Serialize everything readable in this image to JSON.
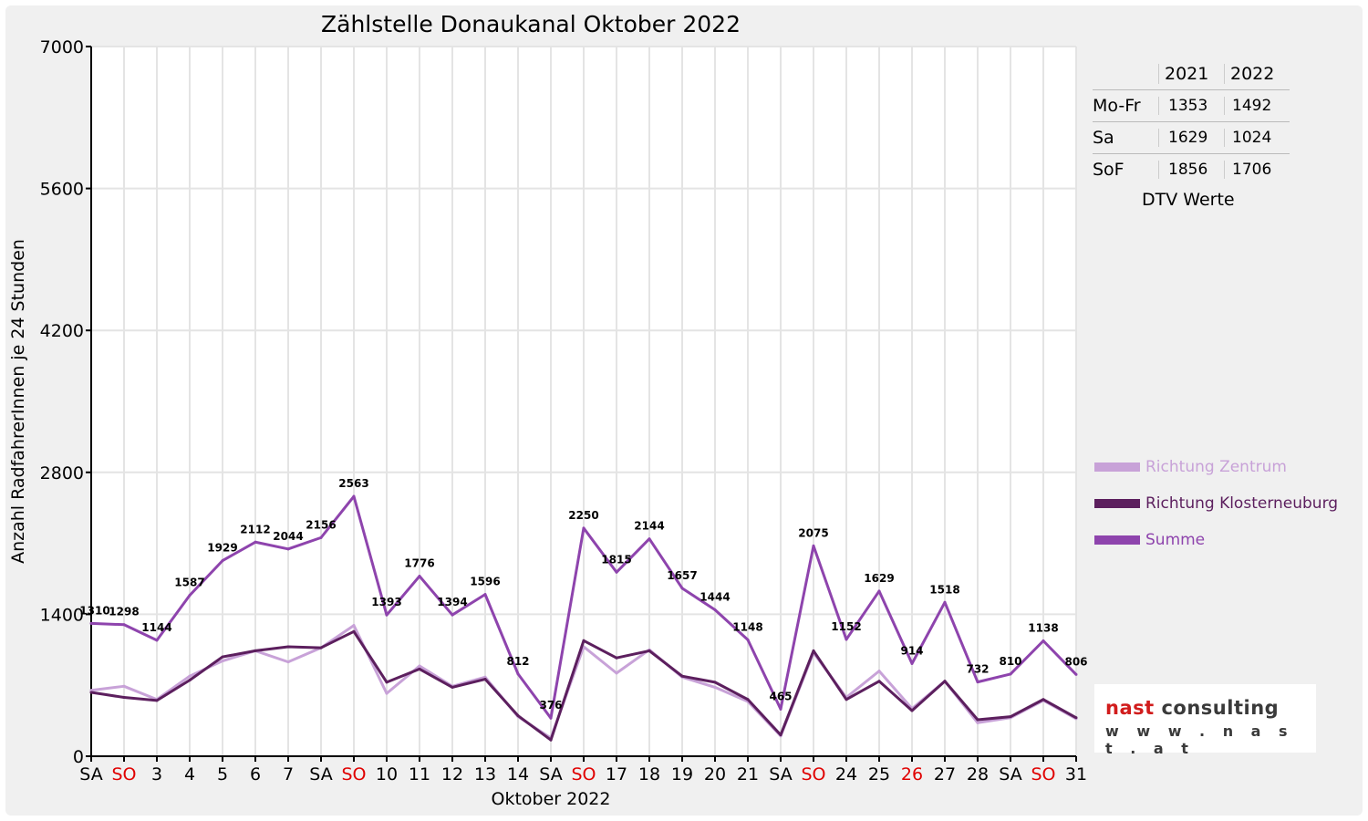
{
  "chart_data": {
    "type": "line",
    "title": "Zählstelle Donaukanal Oktober 2022",
    "xlabel": "Oktober 2022",
    "ylabel": "Anzahl RadfahrerInnen je 24 Stunden",
    "ylim": [
      0,
      7000
    ],
    "yticks": [
      0,
      1400,
      2800,
      4200,
      5600,
      7000
    ],
    "grid": true,
    "legend_position": "right",
    "categories": [
      "SA",
      "SO",
      "3",
      "4",
      "5",
      "6",
      "7",
      "SA",
      "SO",
      "10",
      "11",
      "12",
      "13",
      "14",
      "SA",
      "SO",
      "17",
      "18",
      "19",
      "20",
      "21",
      "SA",
      "SO",
      "24",
      "25",
      "26",
      "27",
      "28",
      "SA",
      "SO",
      "31"
    ],
    "red_categories": [
      1,
      8,
      15,
      22,
      25,
      29
    ],
    "series": [
      {
        "name": "Richtung Zentrum",
        "color": "#c8a2d8",
        "values": [
          650,
          690,
          560,
          790,
          940,
          1040,
          930,
          1070,
          1290,
          620,
          890,
          690,
          780,
          390,
          180,
          1080,
          820,
          1050,
          780,
          680,
          540,
          200,
          1020,
          580,
          840,
          470,
          740,
          330,
          380,
          550,
          370
        ]
      },
      {
        "name": "Richtung Klosterneuburg",
        "color": "#5c1f5e",
        "values": [
          630,
          580,
          550,
          750,
          980,
          1040,
          1080,
          1070,
          1230,
          730,
          860,
          680,
          760,
          400,
          160,
          1140,
          970,
          1040,
          790,
          730,
          560,
          210,
          1040,
          560,
          740,
          450,
          740,
          360,
          390,
          560,
          380
        ]
      },
      {
        "name": "Summe",
        "color": "#8e44ad",
        "values": [
          1310,
          1298,
          1144,
          1587,
          1929,
          2112,
          2044,
          2156,
          2563,
          1393,
          1776,
          1394,
          1596,
          812,
          376,
          2250,
          1815,
          2144,
          1657,
          1444,
          1148,
          465,
          2075,
          1152,
          1629,
          914,
          1518,
          732,
          810,
          1138,
          806
        ]
      }
    ],
    "data_labels": [
      "1310",
      "1298",
      "1144",
      "1587",
      "1929",
      "2112",
      "2044",
      "2156",
      "2563",
      "1393",
      "1776",
      "1394",
      "1596",
      "812",
      "376",
      "2250",
      "1815",
      "2144",
      "1657",
      "1444",
      "1148",
      "465",
      "2075",
      "1152",
      "1629",
      "914",
      "1518",
      "732",
      "810",
      "1138",
      "806"
    ]
  },
  "dtv_table": {
    "headers": [
      "2021",
      "2022"
    ],
    "rows": [
      {
        "label": "Mo-Fr",
        "v2021": "1353",
        "v2022": "1492"
      },
      {
        "label": "Sa",
        "v2021": "1629",
        "v2022": "1024"
      },
      {
        "label": "SoF",
        "v2021": "1856",
        "v2022": "1706"
      }
    ],
    "caption": "DTV Werte"
  },
  "logo": {
    "name": "nast consulting",
    "url": "w w w . n a s t . a t",
    "colors": {
      "accent": "#d11c1c",
      "text": "#3a3a3a"
    }
  },
  "colors": {
    "background": "#f0f0f0",
    "sunday_label": "#e00000"
  }
}
